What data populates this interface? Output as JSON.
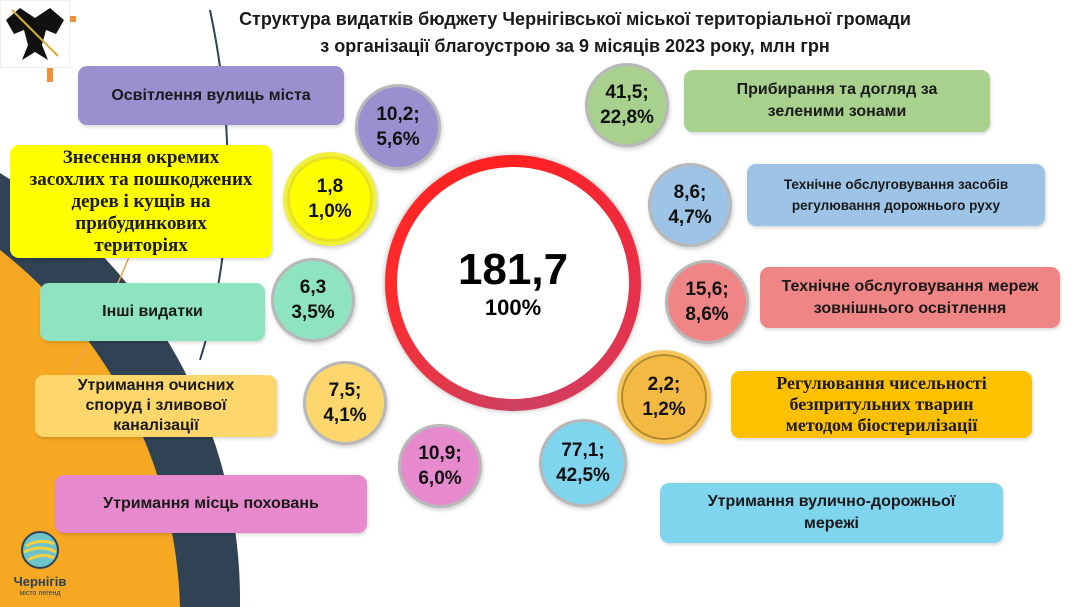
{
  "title": {
    "line1": "Структура видатків бюджету Чернігівської міської територіальної громади",
    "line2": "з організації благоустрою за 9 місяців 2023 року, млн грн"
  },
  "total": {
    "value": "181,7",
    "percent": "100%"
  },
  "items": [
    {
      "label": "Освітлення вулиць міста",
      "value": "10,2;",
      "percent": "5,6%",
      "color": "#9c8fd0"
    },
    {
      "label": "Знесення окремих засохлих та пошкоджених дерев і кущів на прибудинкових територіях",
      "value": "1,8",
      "percent": "1,0%",
      "color": "#ffff00"
    },
    {
      "label": "Інші видатки",
      "value": "6,3",
      "percent": "3,5%",
      "color": "#8ee4c0"
    },
    {
      "label": "Утримання очисних споруд і зливової каналізації",
      "value": "7,5;",
      "percent": "4,1%",
      "color": "#fdd66c"
    },
    {
      "label": "Утримання місць поховань",
      "value": "10,9;",
      "percent": "6,0%",
      "color": "#e68acd"
    },
    {
      "label": "Прибирання та догляд за зеленими зонами",
      "value": "41,5;",
      "percent": "22,8%",
      "color": "#a9d18e"
    },
    {
      "label": "Технічне обслуговування засобів регулювання дорожнього руху",
      "value": "8,6;",
      "percent": "4,7%",
      "color": "#9dc3e6"
    },
    {
      "label": "Технічне обслуговування мереж зовнішнього освітлення",
      "value": "15,6;",
      "percent": "8,6%",
      "color": "#f08585"
    },
    {
      "label": "Регулювання чисельності безпритульних тварин методом біостерилізації",
      "value": "2,2;",
      "percent": "1,2%",
      "color": "#ffc000"
    },
    {
      "label": "Утримання вулично-дорожньої мережі",
      "value": "77,1;",
      "percent": "42,5%",
      "color": "#7fd4ee"
    }
  ],
  "logo": {
    "name": "Чернігів",
    "tagline": "місто легенд"
  }
}
